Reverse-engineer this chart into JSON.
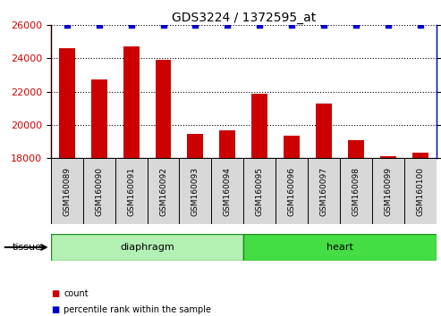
{
  "title": "GDS3224 / 1372595_at",
  "samples": [
    "GSM160089",
    "GSM160090",
    "GSM160091",
    "GSM160092",
    "GSM160093",
    "GSM160094",
    "GSM160095",
    "GSM160096",
    "GSM160097",
    "GSM160098",
    "GSM160099",
    "GSM160100"
  ],
  "counts": [
    24600,
    22750,
    24700,
    23900,
    19450,
    19650,
    21850,
    19350,
    21300,
    19100,
    18100,
    18300
  ],
  "percentiles": [
    100,
    100,
    100,
    100,
    100,
    100,
    100,
    100,
    100,
    100,
    100,
    100
  ],
  "ylim_left": [
    18000,
    26000
  ],
  "ylim_right": [
    0,
    100
  ],
  "yticks_left": [
    18000,
    20000,
    22000,
    24000,
    26000
  ],
  "yticks_right": [
    0,
    25,
    50,
    75,
    100
  ],
  "bar_color": "#cc0000",
  "dot_color": "#0000cc",
  "tick_label_color_left": "#cc0000",
  "tick_label_color_right": "#0000cc",
  "tissue_groups": [
    {
      "label": "diaphragm",
      "start": 0,
      "end": 5,
      "color": "#b3f0b3",
      "edge_color": "#228b22"
    },
    {
      "label": "heart",
      "start": 6,
      "end": 11,
      "color": "#44dd44",
      "edge_color": "#228b22"
    }
  ],
  "legend_items": [
    {
      "color": "#cc0000",
      "label": "count"
    },
    {
      "color": "#0000cc",
      "label": "percentile rank within the sample"
    }
  ],
  "tissue_label": "tissue",
  "bar_width": 0.5
}
